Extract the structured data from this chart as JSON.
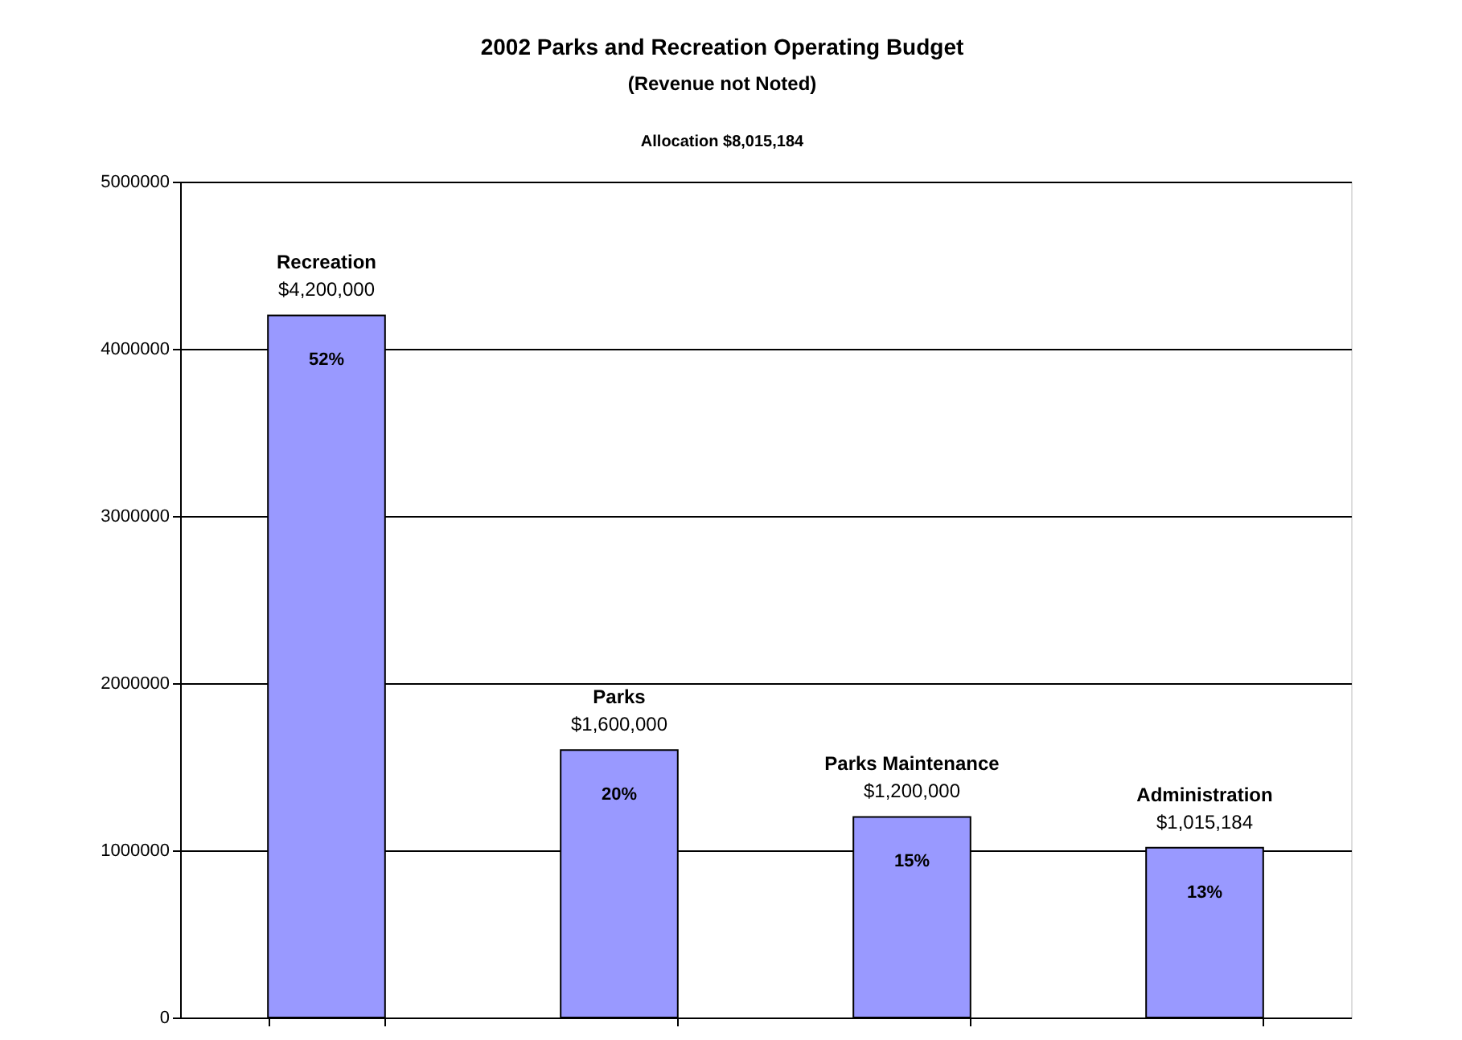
{
  "chart_data": {
    "type": "bar",
    "title": "2002 Parks and Recreation Operating Budget",
    "subtitle": "(Revenue not Noted)",
    "categories": [
      "Recreation",
      "Parks",
      "Parks Maintenance",
      "Administration"
    ],
    "values": [
      4200000,
      1600000,
      1200000,
      1015184
    ],
    "value_labels": [
      "$4,200,000",
      "$1,600,000",
      "$1,200,000",
      "$1,015,184"
    ],
    "color": "#9999ff",
    "ylim": [
      0,
      5000000
    ],
    "yticks": [
      0,
      1000000,
      2000000,
      3000000,
      4000000,
      5000000
    ],
    "grid": "y",
    "tick_labels": "y",
    "annotations": [
      "Allocation $8,015,184",
      "52%",
      "20%",
      "15%",
      "13%"
    ]
  }
}
